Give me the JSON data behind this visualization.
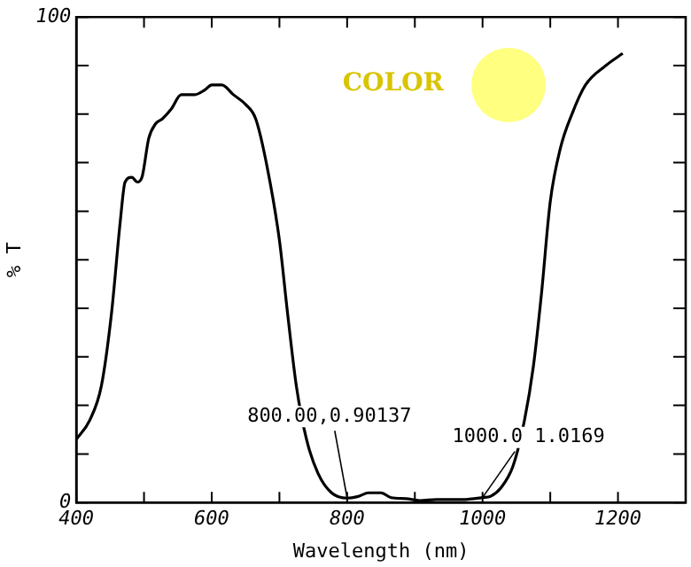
{
  "chart_data": {
    "type": "line",
    "xlabel": "Wavelength (nm)",
    "ylabel": "% T",
    "x": [
      400,
      420,
      437,
      452,
      465,
      472,
      482,
      490,
      497,
      507,
      517,
      527,
      540,
      555,
      575,
      590,
      600,
      615,
      632,
      650,
      665,
      682,
      700,
      712,
      725,
      740,
      757,
      777,
      800,
      815,
      832,
      850,
      865,
      887,
      907,
      932,
      970,
      1000,
      1012,
      1027,
      1045,
      1062,
      1075,
      1087,
      1100,
      1115,
      1132,
      1152,
      1182,
      1207
    ],
    "series": [
      {
        "color": "#000000",
        "values": [
          13,
          17,
          24,
          39,
          58,
          66,
          67,
          66,
          67,
          75,
          78,
          79,
          81,
          84,
          84,
          85,
          86,
          86,
          84,
          82,
          79,
          69,
          54,
          39,
          24,
          13,
          6,
          2,
          0.90137,
          1.2,
          2,
          2,
          1,
          0.8,
          0.4,
          0.6,
          0.6,
          1.0169,
          1.3,
          3,
          7.5,
          17,
          28,
          43,
          62,
          73,
          80,
          86,
          90,
          92.5
        ]
      }
    ],
    "xlim": [
      400,
      1300
    ],
    "xticks": [
      400,
      {
        "value": 500,
        "label": null
      },
      600,
      {
        "value": 700,
        "label": null
      },
      800,
      {
        "value": 900,
        "label": null
      },
      1000,
      {
        "value": 1100,
        "label": null
      },
      1200,
      {
        "value": 1300,
        "label": null
      }
    ],
    "ylim": [
      0,
      100
    ],
    "yticks": [
      0,
      {
        "value": 10,
        "label": null
      },
      {
        "value": 20,
        "label": null
      },
      {
        "value": 30,
        "label": null
      },
      {
        "value": 40,
        "label": null
      },
      {
        "value": 50,
        "label": null
      },
      {
        "value": 60,
        "label": null
      },
      {
        "value": 70,
        "label": null
      },
      {
        "value": 80,
        "label": null
      },
      {
        "value": 90,
        "label": null
      },
      100
    ],
    "annotations": [
      "COLOR",
      {
        "text": "800.00,0.90137",
        "x": 800,
        "y": 0.90137
      },
      {
        "text": "1000.0 1.0169",
        "x": 1000,
        "y": 1.0169
      }
    ],
    "grid": false,
    "legend": false,
    "marker": "none",
    "line_style": "solid"
  }
}
